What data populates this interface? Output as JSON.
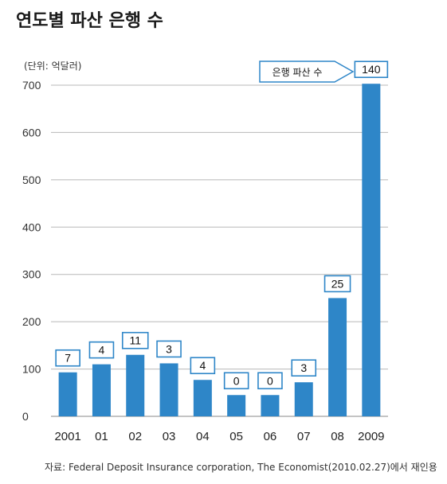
{
  "header": {
    "title": "연도별 파산 은행 수",
    "unit_label": "(단위: 억달러)",
    "source": "자료: Federal Deposit Insurance corporation, The Economist(2010.02.27)에서 재인용"
  },
  "callout": {
    "text": "은행 파산 수"
  },
  "colors": {
    "bar": "#2e86c8",
    "label_border": "#2e86c8",
    "grid": "#b8b8b8"
  },
  "chart_data": {
    "type": "bar",
    "title": "연도별 파산 은행 수",
    "ylabel": "(단위: 억달러)",
    "xlabel": "",
    "ylim": [
      0,
      700
    ],
    "yticks": [
      0,
      100,
      200,
      300,
      400,
      500,
      600,
      700
    ],
    "grid": true,
    "categories": [
      "2001",
      "01",
      "02",
      "03",
      "04",
      "05",
      "06",
      "07",
      "08",
      "2009"
    ],
    "values": [
      93,
      110,
      130,
      112,
      77,
      45,
      45,
      72,
      250,
      703
    ],
    "data_labels": [
      "7",
      "4",
      "11",
      "3",
      "4",
      "0",
      "0",
      "3",
      "25",
      "140"
    ]
  }
}
